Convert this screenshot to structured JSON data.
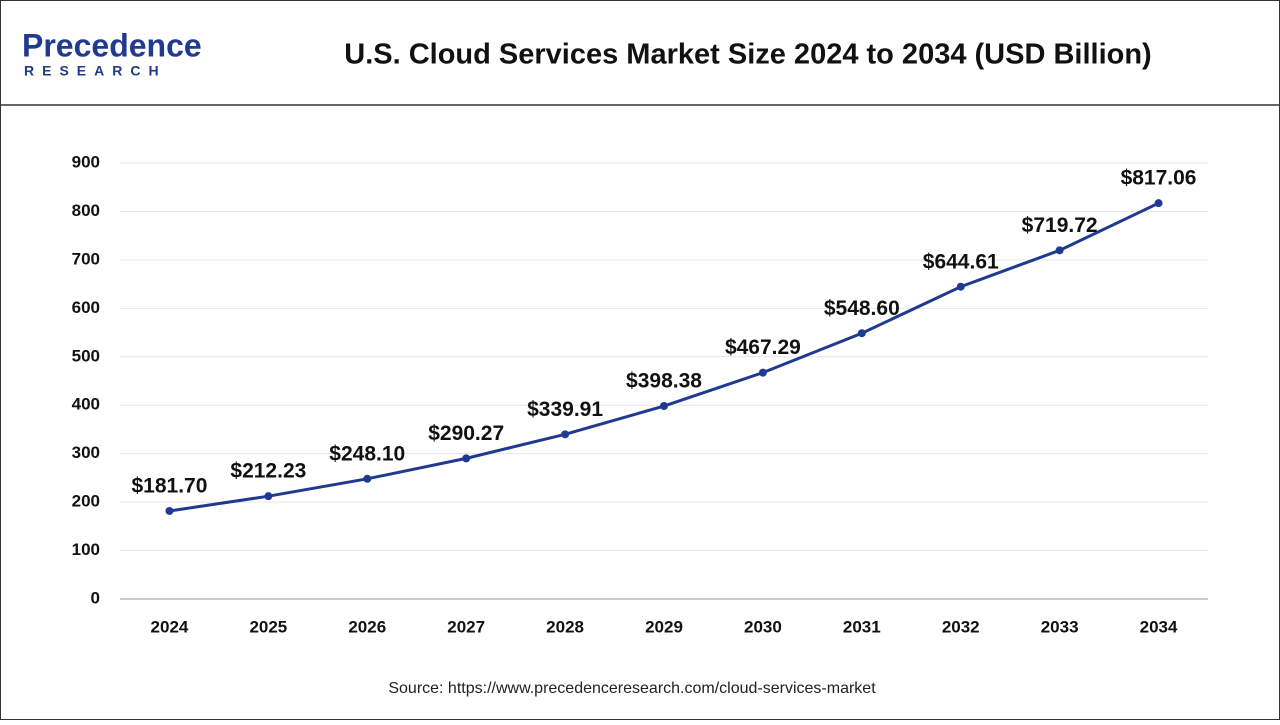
{
  "logo": {
    "name": "Precedence",
    "tagline": "RESEARCH"
  },
  "chart_data": {
    "type": "line",
    "title": "U.S. Cloud Services Market Size 2024 to 2034 (USD Billion)",
    "categories": [
      "2024",
      "2025",
      "2026",
      "2027",
      "2028",
      "2029",
      "2030",
      "2031",
      "2032",
      "2033",
      "2034"
    ],
    "values": [
      181.7,
      212.23,
      248.1,
      290.27,
      339.91,
      398.38,
      467.29,
      548.6,
      644.61,
      719.72,
      817.06
    ],
    "value_labels": [
      "$181.70",
      "$212.23",
      "$248.10",
      "$290.27",
      "$339.91",
      "$398.38",
      "$467.29",
      "$548.60",
      "$644.61",
      "$719.72",
      "$817.06"
    ],
    "color": "#1f3a8f",
    "ylim": [
      0,
      900
    ],
    "yticks": [
      0,
      100,
      200,
      300,
      400,
      500,
      600,
      700,
      800,
      900
    ],
    "grid": true,
    "source": "Source: https://www.precedenceresearch.com/cloud-services-market"
  }
}
